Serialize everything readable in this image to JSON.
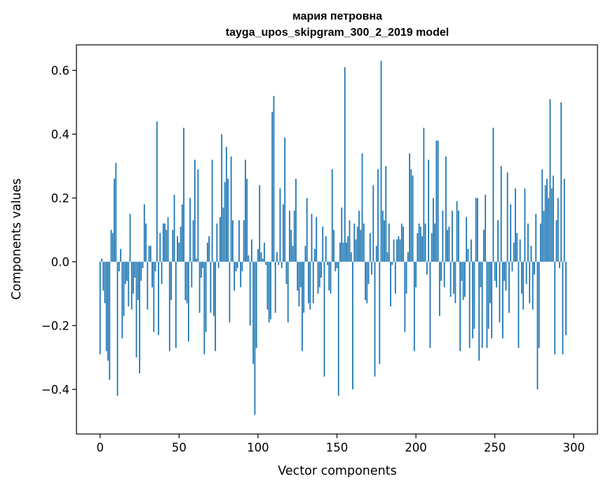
{
  "chart_data": {
    "type": "bar",
    "title": "мария петровна",
    "subtitle": "tayga_upos_skipgram_300_2_2019 model",
    "xlabel": "Vector components",
    "ylabel": "Components values",
    "xlim": [
      -15,
      315
    ],
    "ylim": [
      -0.54,
      0.68
    ],
    "xticks": [
      0,
      50,
      100,
      150,
      200,
      250,
      300
    ],
    "xtick_labels": [
      "0",
      "50",
      "100",
      "150",
      "200",
      "250",
      "300"
    ],
    "yticks": [
      -0.4,
      -0.2,
      0.0,
      0.2,
      0.4,
      0.6
    ],
    "ytick_labels": [
      "−0.4",
      "−0.2",
      "0.0",
      "0.2",
      "0.4",
      "0.6"
    ],
    "bar_color": "#1f77b4",
    "grid": false,
    "values": [
      -0.29,
      0.01,
      -0.09,
      -0.13,
      -0.28,
      -0.31,
      -0.37,
      0.1,
      0.09,
      0.26,
      0.31,
      -0.42,
      -0.03,
      0.04,
      -0.24,
      -0.17,
      -0.07,
      -0.06,
      -0.14,
      0.15,
      -0.15,
      -0.1,
      -0.05,
      -0.3,
      -0.12,
      -0.35,
      -0.06,
      -0.02,
      0.18,
      0.12,
      -0.15,
      0.05,
      0.05,
      -0.08,
      -0.22,
      -0.03,
      0.44,
      -0.23,
      0.09,
      -0.07,
      0.12,
      0.12,
      0.1,
      0.14,
      -0.28,
      -0.12,
      0.1,
      0.21,
      -0.27,
      0.08,
      0.06,
      0.11,
      0.18,
      0.42,
      -0.12,
      -0.13,
      -0.25,
      0.2,
      -0.08,
      0.13,
      0.32,
      0.01,
      0.29,
      -0.16,
      -0.05,
      -0.02,
      -0.29,
      -0.22,
      0.06,
      0.08,
      -0.16,
      0.32,
      -0.17,
      -0.28,
      0.12,
      -0.02,
      0.14,
      0.4,
      0.17,
      0.25,
      0.36,
      0.26,
      -0.19,
      0.33,
      0.13,
      -0.09,
      -0.03,
      -0.02,
      0.13,
      -0.08,
      -0.03,
      0.13,
      0.32,
      0.26,
      0.02,
      -0.2,
      0.07,
      -0.32,
      -0.48,
      -0.27,
      0.04,
      0.24,
      0.03,
      0.01,
      0.06,
      -0.01,
      -0.15,
      -0.19,
      -0.18,
      0.47,
      0.52,
      -0.16,
      0.03,
      -0.01,
      0.23,
      -0.02,
      0.18,
      0.39,
      -0.07,
      -0.19,
      0.16,
      0.1,
      0.05,
      0.16,
      0.26,
      -0.09,
      -0.14,
      -0.08,
      -0.28,
      -0.16,
      0.05,
      0.2,
      -0.13,
      -0.15,
      0.15,
      -0.13,
      0.04,
      0.14,
      -0.1,
      -0.08,
      -0.05,
      0.11,
      -0.36,
      0.08,
      -0.01,
      -0.09,
      -0.1,
      0.29,
      0.1,
      -0.03,
      -0.02,
      -0.42,
      0.06,
      0.17,
      0.06,
      0.61,
      0.06,
      0.08,
      0.13,
      0.03,
      -0.4,
      0.12,
      0.07,
      0.11,
      0.16,
      0.1,
      0.34,
      0.12,
      -0.12,
      -0.13,
      -0.07,
      0.09,
      -0.04,
      0.24,
      -0.36,
      0.05,
      0.29,
      -0.32,
      0.63,
      0.16,
      0.13,
      0.3,
      0.03,
      0.12,
      -0.14,
      -0.01,
      0.07,
      -0.1,
      0.07,
      0.08,
      0.07,
      0.12,
      0.11,
      -0.22,
      -0.1,
      0.03,
      0.34,
      0.29,
      0.27,
      -0.28,
      -0.08,
      0.09,
      0.12,
      0.11,
      0.08,
      0.42,
      0.12,
      -0.04,
      0.32,
      -0.27,
      0.09,
      0.2,
      0.12,
      0.38,
      0.38,
      -0.17,
      -0.06,
      0.16,
      -0.08,
      0.33,
      0.1,
      0.11,
      -0.11,
      0.16,
      -0.1,
      -0.13,
      0.19,
      0.16,
      -0.28,
      -0.06,
      -0.12,
      -0.11,
      0.14,
      0.04,
      -0.27,
      0.07,
      -0.24,
      -0.21,
      0.2,
      0.2,
      -0.31,
      -0.08,
      -0.27,
      0.1,
      0.21,
      -0.27,
      -0.21,
      -0.13,
      -0.24,
      0.42,
      -0.06,
      -0.08,
      0.13,
      -0.19,
      0.3,
      -0.24,
      -0.06,
      -0.09,
      0.28,
      -0.16,
      0.18,
      -0.03,
      0.06,
      0.23,
      0.09,
      -0.27,
      0.07,
      -0.1,
      -0.15,
      0.23,
      -0.07,
      0.12,
      -0.13,
      0.05,
      -0.15,
      -0.04,
      0.15,
      -0.4,
      -0.27,
      0.12,
      0.29,
      0.16,
      0.24,
      0.26,
      0.2,
      0.51,
      0.23,
      0.27,
      -0.29,
      0.13,
      0.2,
      -0.02,
      0.5,
      -0.29,
      0.26,
      -0.23
    ]
  }
}
